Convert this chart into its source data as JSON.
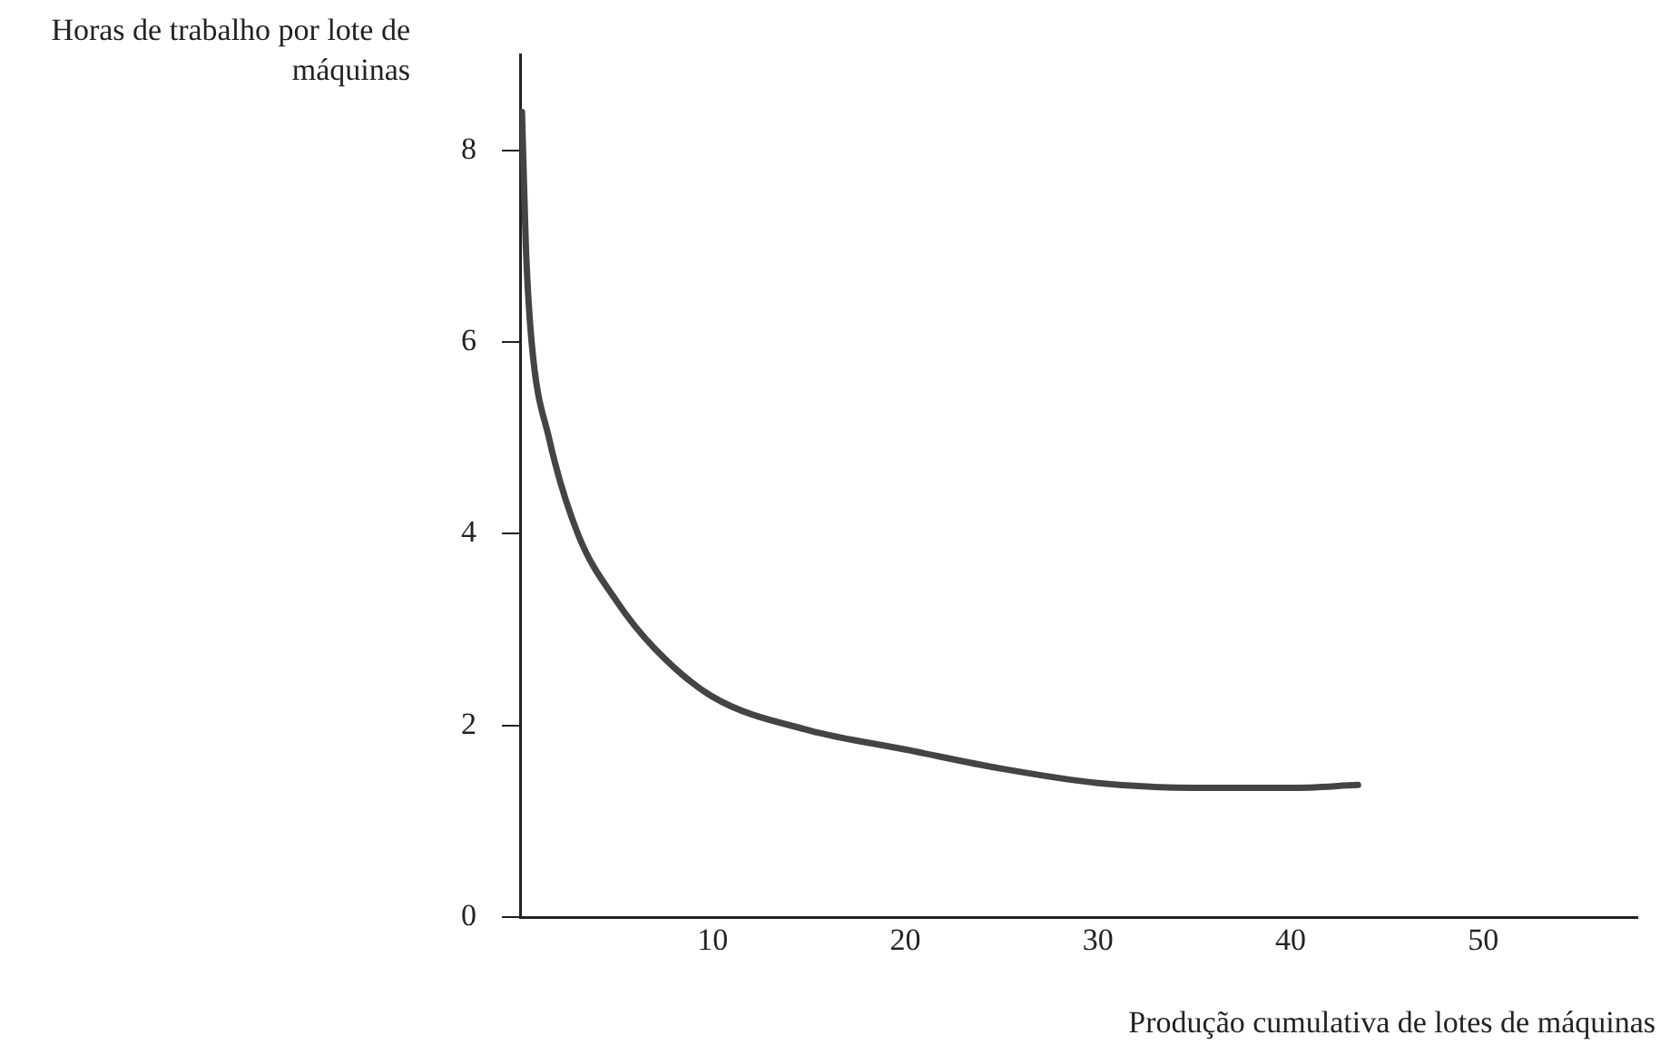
{
  "chart_data": {
    "type": "line",
    "xlabel": "Produção cumulativa de lotes de máquinas",
    "ylabel": "Horas de trabalho por lote de máquinas",
    "series": [
      {
        "color": "#444444",
        "x": [
          0.1,
          0.3,
          0.6,
          1.5,
          3,
          5,
          7,
          10,
          15,
          20,
          25,
          30,
          35,
          40,
          43.5
        ],
        "values": [
          8.4,
          7.0,
          6.0,
          5.0,
          4.0,
          3.3,
          2.8,
          2.3,
          1.95,
          1.75,
          1.55,
          1.4,
          1.35,
          1.35,
          1.38
        ]
      }
    ],
    "xlim": [
      0,
      58
    ],
    "ylim": [
      0,
      9
    ],
    "xticks": [
      10,
      20,
      30,
      40,
      50
    ],
    "yticks": [
      0,
      2,
      4,
      6,
      8
    ],
    "grid": false,
    "legend": false,
    "marker": "none",
    "line_style": "solid"
  }
}
